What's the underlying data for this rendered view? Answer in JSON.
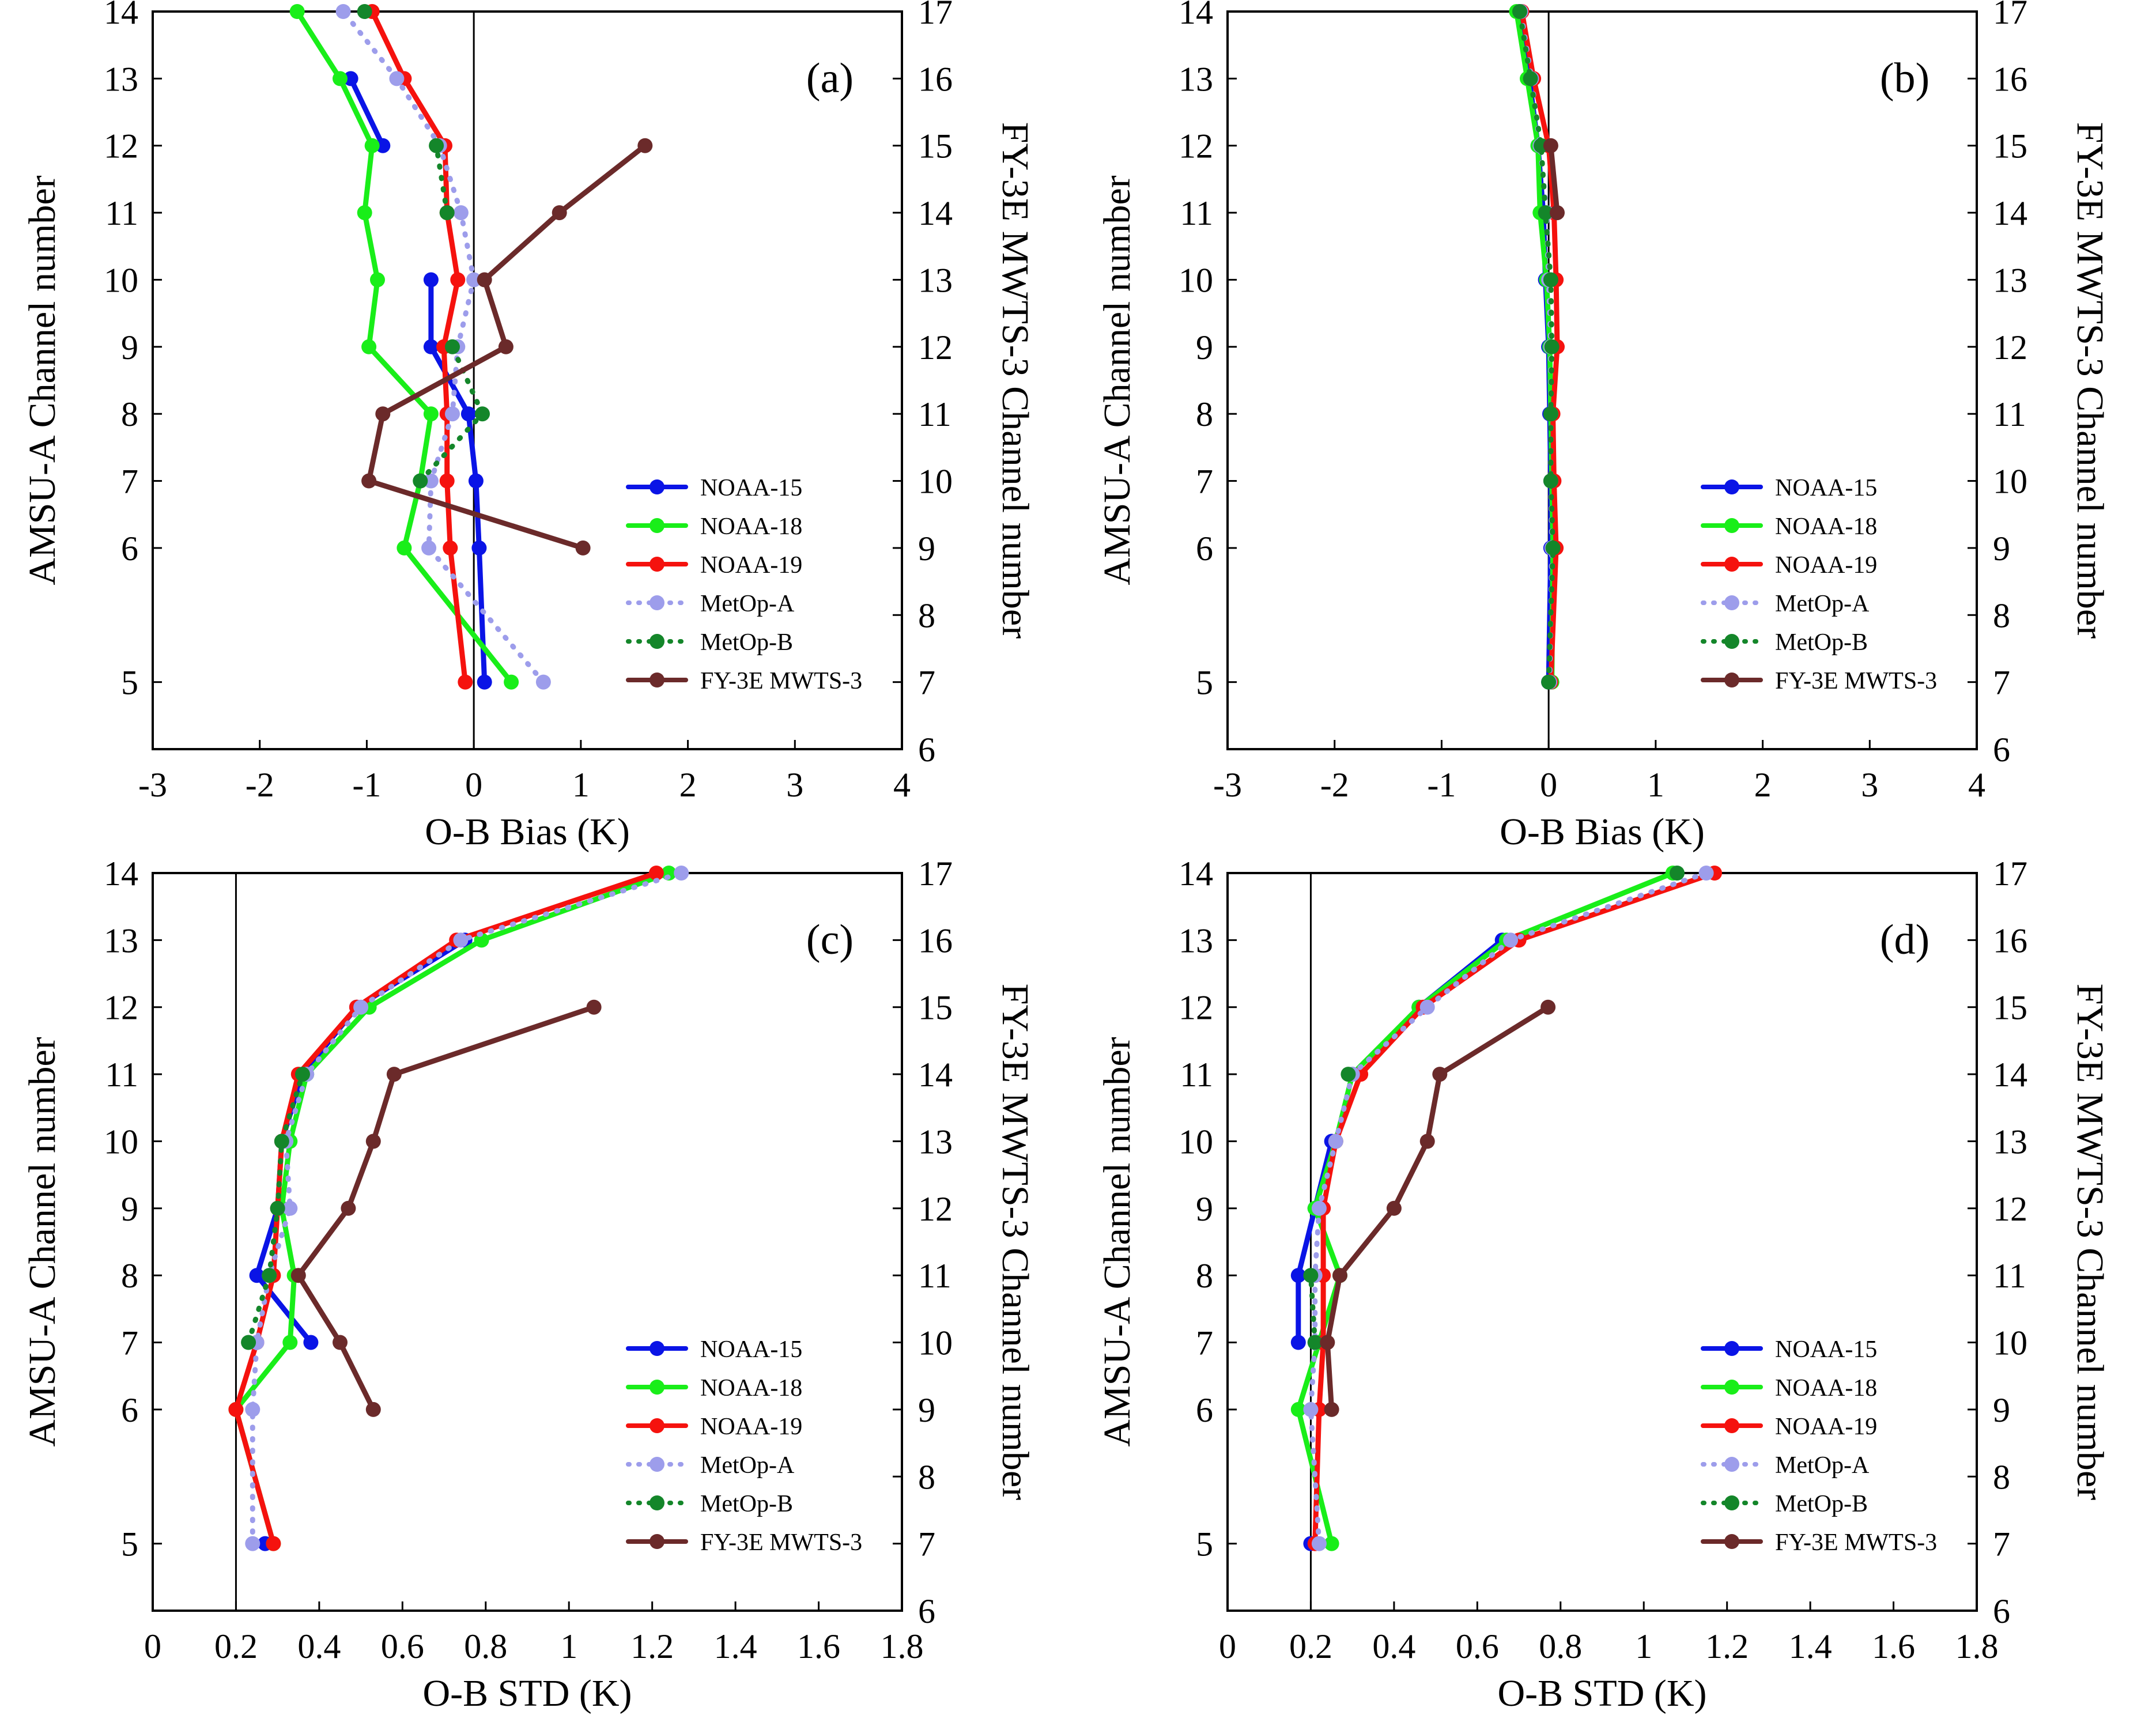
{
  "figure": {
    "left_axis_title": "AMSU-A Channel number",
    "right_axis_title": "FY-3E MWTS-3 Channel number"
  },
  "series_styles": [
    {
      "name": "NOAA-15",
      "color": "#0a14e6",
      "dash": "solid"
    },
    {
      "name": "NOAA-18",
      "color": "#19ee19",
      "dash": "solid"
    },
    {
      "name": "NOAA-19",
      "color": "#f5120e",
      "dash": "solid"
    },
    {
      "name": "MetOp-A",
      "color": "#9d9deb",
      "dash": "dotted"
    },
    {
      "name": "MetOp-B",
      "color": "#14862a",
      "dash": "dotted"
    },
    {
      "name": "FY-3E MWTS-3",
      "color": "#6b2a2a",
      "dash": "solid"
    }
  ],
  "chart_data": [
    {
      "type": "line",
      "panel": "(a)",
      "xlabel": "O-B Bias (K)",
      "xlim": [
        -3,
        4
      ],
      "xticks": [
        -3,
        -2,
        -1,
        0,
        1,
        2,
        3,
        4
      ],
      "ref_x": 0,
      "left_axis": {
        "label": "AMSU-A Channel number",
        "ticks": [
          5,
          6,
          7,
          8,
          9,
          10,
          11,
          12,
          13,
          14
        ]
      },
      "right_axis": {
        "label": "FY-3E MWTS-3 Channel number",
        "ticks": [
          6,
          7,
          8,
          9,
          10,
          11,
          12,
          13,
          14,
          15,
          16,
          17
        ]
      },
      "amsu_channels": [
        5,
        6,
        7,
        8,
        9,
        10,
        11,
        12,
        13,
        14
      ],
      "series": [
        {
          "name": "NOAA-15",
          "values": [
            0.1,
            0.05,
            0.02,
            -0.05,
            -0.4,
            -0.4,
            null,
            -0.85,
            -1.15,
            null
          ]
        },
        {
          "name": "NOAA-18",
          "values": [
            0.35,
            -0.65,
            -0.5,
            -0.4,
            -0.98,
            -0.9,
            -1.02,
            -0.95,
            -1.25,
            -1.65
          ]
        },
        {
          "name": "NOAA-19",
          "values": [
            -0.08,
            -0.22,
            -0.25,
            -0.25,
            -0.28,
            -0.15,
            -0.25,
            -0.27,
            -0.65,
            -0.95
          ]
        },
        {
          "name": "MetOp-A",
          "values": [
            0.65,
            -0.42,
            -0.4,
            -0.2,
            -0.15,
            0.0,
            -0.12,
            -0.32,
            -0.72,
            -1.22
          ]
        },
        {
          "name": "MetOp-B",
          "values": [
            null,
            null,
            -0.5,
            0.08,
            -0.2,
            null,
            -0.25,
            -0.35,
            null,
            -1.02
          ]
        },
        {
          "name": "FY-3E MWTS-3",
          "values": [
            null,
            1.02,
            -0.98,
            -0.85,
            0.3,
            0.1,
            0.8,
            1.6,
            null,
            null
          ]
        }
      ]
    },
    {
      "type": "line",
      "panel": "(b)",
      "xlabel": "O-B Bias (K)",
      "xlim": [
        -3,
        4
      ],
      "xticks": [
        -3,
        -2,
        -1,
        0,
        1,
        2,
        3,
        4
      ],
      "ref_x": 0,
      "left_axis": {
        "label": "AMSU-A Channel number",
        "ticks": [
          5,
          6,
          7,
          8,
          9,
          10,
          11,
          12,
          13,
          14
        ]
      },
      "right_axis": {
        "label": "FY-3E MWTS-3 Channel number",
        "ticks": [
          6,
          7,
          8,
          9,
          10,
          11,
          12,
          13,
          14,
          15,
          16,
          17
        ]
      },
      "amsu_channels": [
        5,
        6,
        7,
        8,
        9,
        10,
        11,
        12,
        13,
        14
      ],
      "series": [
        {
          "name": "NOAA-15",
          "values": [
            0.0,
            0.02,
            0.02,
            0.01,
            0.0,
            -0.03,
            -0.05,
            -0.1,
            -0.18,
            -0.27
          ]
        },
        {
          "name": "NOAA-18",
          "values": [
            0.03,
            0.04,
            0.03,
            0.02,
            0.01,
            -0.02,
            -0.08,
            -0.1,
            -0.2,
            -0.3
          ]
        },
        {
          "name": "NOAA-19",
          "values": [
            0.02,
            0.07,
            0.05,
            0.04,
            0.08,
            0.07,
            0.05,
            0.0,
            -0.14,
            -0.25
          ]
        },
        {
          "name": "MetOp-A",
          "values": [
            0.01,
            0.03,
            0.02,
            0.02,
            0.02,
            0.0,
            -0.02,
            -0.08,
            -0.16,
            -0.26
          ]
        },
        {
          "name": "MetOp-B",
          "values": [
            0.0,
            0.04,
            0.02,
            0.02,
            0.03,
            0.02,
            -0.03,
            -0.07,
            -0.17,
            -0.27
          ]
        },
        {
          "name": "FY-3E MWTS-3",
          "values": [
            null,
            null,
            null,
            null,
            null,
            null,
            0.08,
            0.02,
            null,
            null
          ]
        }
      ]
    },
    {
      "type": "line",
      "panel": "(c)",
      "xlabel": "O-B STD (K)",
      "xlim": [
        0,
        1.8
      ],
      "xticks": [
        0,
        0.2,
        0.4,
        0.6,
        0.8,
        1,
        1.2,
        1.4,
        1.6,
        1.8
      ],
      "ref_x": 0.2,
      "left_axis": {
        "label": "AMSU-A Channel number",
        "ticks": [
          5,
          6,
          7,
          8,
          9,
          10,
          11,
          12,
          13,
          14
        ]
      },
      "right_axis": {
        "label": "FY-3E MWTS-3 Channel number",
        "ticks": [
          6,
          7,
          8,
          9,
          10,
          11,
          12,
          13,
          14,
          15,
          16,
          17
        ]
      },
      "amsu_channels": [
        5,
        6,
        7,
        8,
        9,
        10,
        11,
        12,
        13,
        14
      ],
      "series": [
        {
          "name": "NOAA-15",
          "values": [
            0.27,
            null,
            0.38,
            0.25,
            0.3,
            0.31,
            0.36,
            0.49,
            0.75,
            null
          ]
        },
        {
          "name": "NOAA-18",
          "values": [
            0.29,
            0.2,
            0.33,
            0.34,
            0.31,
            0.33,
            0.37,
            0.52,
            0.79,
            1.24
          ]
        },
        {
          "name": "NOAA-19",
          "values": [
            0.29,
            0.2,
            0.25,
            0.29,
            0.3,
            0.31,
            0.35,
            0.49,
            0.73,
            1.21
          ]
        },
        {
          "name": "MetOp-A",
          "values": [
            0.24,
            0.24,
            0.25,
            0.28,
            0.33,
            0.32,
            0.37,
            0.5,
            0.74,
            1.27
          ]
        },
        {
          "name": "MetOp-B",
          "values": [
            null,
            null,
            0.23,
            0.28,
            0.3,
            0.31,
            0.36,
            null,
            null,
            null
          ]
        },
        {
          "name": "FY-3E MWTS-3",
          "values": [
            null,
            0.53,
            0.45,
            0.35,
            0.47,
            0.53,
            0.58,
            1.06,
            null,
            null
          ]
        }
      ]
    },
    {
      "type": "line",
      "panel": "(d)",
      "xlabel": "O-B STD (K)",
      "xlim": [
        0,
        1.8
      ],
      "xticks": [
        0,
        0.2,
        0.4,
        0.6,
        0.8,
        1,
        1.2,
        1.4,
        1.6,
        1.8
      ],
      "ref_x": 0.2,
      "left_axis": {
        "label": "AMSU-A Channel number",
        "ticks": [
          5,
          6,
          7,
          8,
          9,
          10,
          11,
          12,
          13,
          14
        ]
      },
      "right_axis": {
        "label": "FY-3E MWTS-3 Channel number",
        "ticks": [
          6,
          7,
          8,
          9,
          10,
          11,
          12,
          13,
          14,
          15,
          16,
          17
        ]
      },
      "amsu_channels": [
        5,
        6,
        7,
        8,
        9,
        10,
        11,
        12,
        13,
        14
      ],
      "series": [
        {
          "name": "NOAA-15",
          "values": [
            0.2,
            null,
            0.17,
            0.17,
            0.21,
            0.25,
            null,
            0.46,
            0.66,
            null
          ]
        },
        {
          "name": "NOAA-18",
          "values": [
            0.25,
            0.17,
            0.22,
            0.27,
            0.21,
            0.26,
            0.3,
            0.46,
            0.67,
            1.07
          ]
        },
        {
          "name": "NOAA-19",
          "values": [
            0.21,
            0.22,
            0.23,
            0.23,
            0.23,
            0.26,
            0.32,
            0.47,
            0.7,
            1.17
          ]
        },
        {
          "name": "MetOp-A",
          "values": [
            0.22,
            0.2,
            0.21,
            0.21,
            0.22,
            0.26,
            0.3,
            0.48,
            0.68,
            1.15
          ]
        },
        {
          "name": "MetOp-B",
          "values": [
            null,
            null,
            0.21,
            0.2,
            null,
            null,
            0.29,
            null,
            null,
            1.08
          ]
        },
        {
          "name": "FY-3E MWTS-3",
          "values": [
            null,
            0.25,
            0.24,
            0.27,
            0.4,
            0.48,
            0.51,
            0.77,
            null,
            null
          ]
        }
      ]
    }
  ]
}
